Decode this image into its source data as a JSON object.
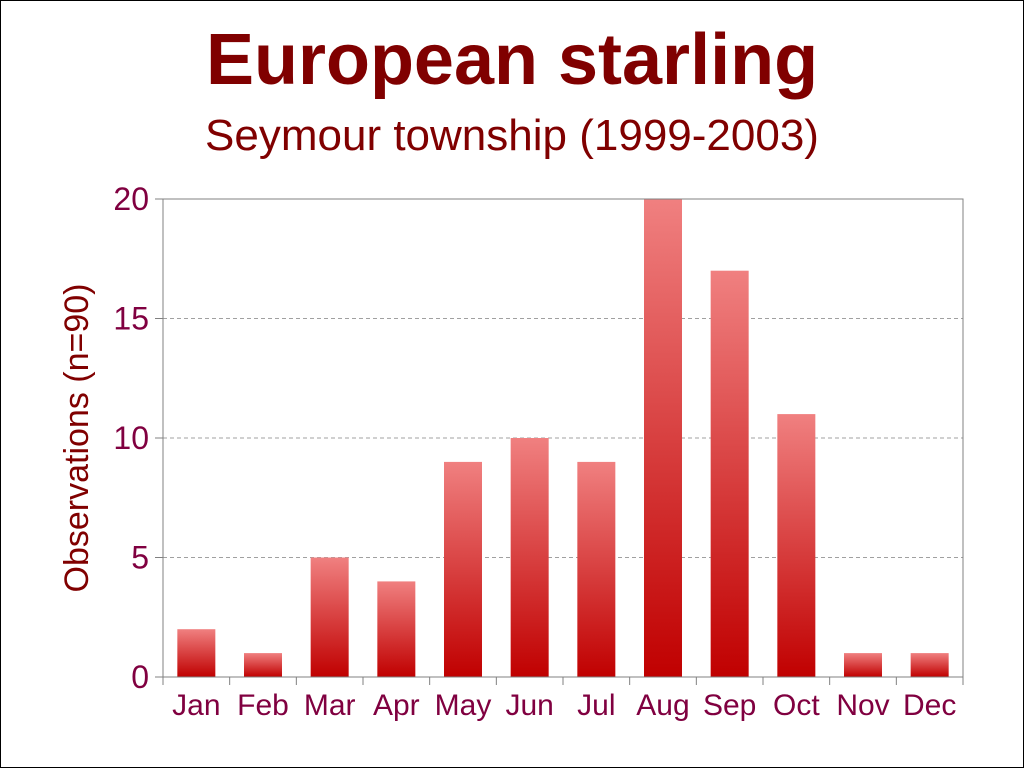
{
  "chart_data": {
    "type": "bar",
    "title": "European starling",
    "subtitle": "Seymour township (1999-2003)",
    "xlabel": "",
    "ylabel": "Observations (n=90)",
    "categories": [
      "Jan",
      "Feb",
      "Mar",
      "Apr",
      "May",
      "Jun",
      "Jul",
      "Aug",
      "Sep",
      "Oct",
      "Nov",
      "Dec"
    ],
    "values": [
      2,
      1,
      5,
      4,
      9,
      10,
      9,
      20,
      17,
      11,
      1,
      1
    ],
    "ylim": [
      0,
      20
    ],
    "yticks": [
      "0",
      "5",
      "10",
      "15",
      "20"
    ],
    "grid": "horizontal dashed",
    "legend": "none",
    "colors": {
      "bar_top": "#f08080",
      "bar_bottom": "#c00000",
      "title": "#800000",
      "tick_labels": "#800040",
      "gridline": "#a0a0a0",
      "axis": "#808080"
    }
  }
}
